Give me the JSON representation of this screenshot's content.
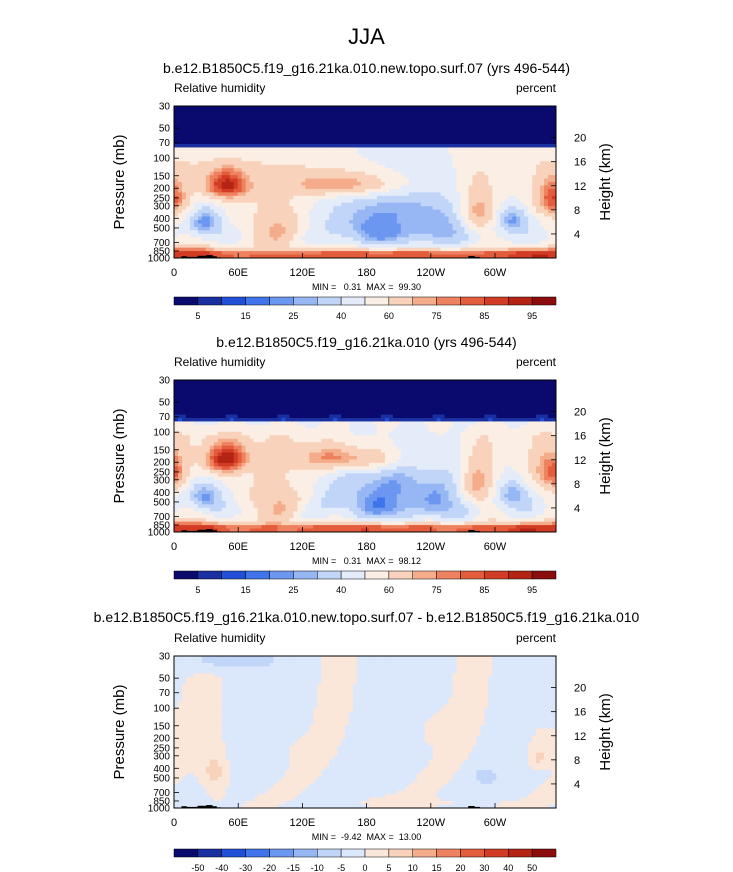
{
  "figure_title": "JJA",
  "panels": [
    {
      "title": "b.e12.B1850C5.f19_g16.21ka.010.new.topo.surf.07 (yrs 496-544)",
      "left_label": "Relative humidity",
      "right_label": "percent",
      "stats": "MIN =   0.31  MAX =  99.30",
      "kind": "abs"
    },
    {
      "title": "b.e12.B1850C5.f19_g16.21ka.010 (yrs 496-544)",
      "left_label": "Relative humidity",
      "right_label": "percent",
      "stats": "MIN =   0.31  MAX =  98.12",
      "kind": "abs"
    },
    {
      "title": "b.e12.B1850C5.f19_g16.21ka.010.new.topo.surf.07 - b.e12.B1850C5.f19_g16.21ka.010",
      "left_label": "Relative humidity",
      "right_label": "percent",
      "stats": "MIN =  -9.42  MAX =  13.00",
      "kind": "diff"
    }
  ],
  "chart_data": {
    "type": "heatmap",
    "title": "JJA",
    "xlabel": "",
    "ylabel_left": "Pressure (mb)",
    "ylabel_right": "Height (km)",
    "x_ticks": [
      "0",
      "60E",
      "120E",
      "180",
      "120W",
      "60W"
    ],
    "x_tick_values": [
      0,
      60,
      120,
      180,
      240,
      300
    ],
    "xlim": [
      0,
      357
    ],
    "y_ticks_pressure": [
      "30",
      "50",
      "70",
      "100",
      "150",
      "200",
      "250",
      "300",
      "400",
      "500",
      "700",
      "850",
      "1000"
    ],
    "y_tick_values": [
      30,
      50,
      70,
      100,
      150,
      200,
      250,
      300,
      400,
      500,
      700,
      850,
      1000
    ],
    "ylim_pressure": [
      1000,
      30
    ],
    "y_ticks_height": [
      "4",
      "8",
      "12",
      "16",
      "20"
    ],
    "y_height_values": [
      4,
      8,
      12,
      16,
      20
    ],
    "abs_levels": [
      "5",
      "15",
      "25",
      "40",
      "60",
      "75",
      "85",
      "95"
    ],
    "abs_level_values": [
      0,
      5,
      10,
      15,
      20,
      25,
      30,
      40,
      50,
      60,
      70,
      75,
      80,
      85,
      90,
      95,
      100
    ],
    "abs_colors": [
      "#0a0a6e",
      "#1a2fa0",
      "#2050d8",
      "#3f74ea",
      "#6c97f0",
      "#97b6f4",
      "#c1d5f8",
      "#e4ecfa",
      "#fbeee4",
      "#f9d2bc",
      "#f5ac8a",
      "#ee8260",
      "#e35c3c",
      "#d23c24",
      "#b32414",
      "#8a0c0c"
    ],
    "diff_levels": [
      "-50",
      "-40",
      "-30",
      "-20",
      "-15",
      "-10",
      "-5",
      "0",
      "5",
      "10",
      "15",
      "20",
      "30",
      "40",
      "50"
    ],
    "diff_colors": [
      "#0a0a6e",
      "#1a2fa0",
      "#2050d8",
      "#3f74ea",
      "#6c97f0",
      "#97b6f4",
      "#c1d5f8",
      "#dbe7fb",
      "#fbe6da",
      "#f9d2bc",
      "#f5ac8a",
      "#ee8260",
      "#e35c3c",
      "#d23c24",
      "#b32414",
      "#8a0c0c"
    ],
    "abs_features": [
      {
        "lon": 210,
        "p": 470,
        "sx": 32,
        "sp": 110,
        "v": 8
      },
      {
        "lon": 210,
        "p": 430,
        "sx": 58,
        "sp": 240,
        "v": 25
      },
      {
        "lon": 28,
        "p": 440,
        "sx": 12,
        "sp": 110,
        "v": 20
      },
      {
        "lon": 315,
        "p": 420,
        "sx": 12,
        "sp": 90,
        "v": 22
      },
      {
        "lon": 50,
        "p": 185,
        "sx": 15,
        "sp": 45,
        "v": 95
      },
      {
        "lon": 355,
        "p": 250,
        "sx": 12,
        "sp": 80,
        "v": 85
      },
      {
        "lon": 150,
        "p": 180,
        "sx": 45,
        "sp": 40,
        "v": 75
      },
      {
        "lon": 180,
        "p": 930,
        "sx": 140,
        "sp": 70,
        "v": 85
      },
      {
        "lon": 340,
        "p": 930,
        "sx": 25,
        "sp": 80,
        "v": 92
      },
      {
        "lon": 20,
        "p": 930,
        "sx": 18,
        "sp": 80,
        "v": 90
      },
      {
        "lon": 100,
        "p": 520,
        "sx": 18,
        "sp": 200,
        "v": 70
      },
      {
        "lon": 285,
        "p": 330,
        "sx": 12,
        "sp": 150,
        "v": 72
      }
    ],
    "diff_features": [
      {
        "lon": 38,
        "p": 420,
        "sx": 8,
        "sp": 120,
        "v": 7
      },
      {
        "lon": 40,
        "p": 650,
        "sx": 10,
        "sp": 200,
        "v": 4
      },
      {
        "lon": 345,
        "p": 230,
        "sx": 12,
        "sp": 80,
        "v": 4
      },
      {
        "lon": 340,
        "p": 320,
        "sx": 6,
        "sp": 60,
        "v": 6
      },
      {
        "lon": 200,
        "p": 850,
        "sx": 40,
        "sp": 60,
        "v": 2
      },
      {
        "lon": 290,
        "p": 480,
        "sx": 8,
        "sp": 60,
        "v": -6
      },
      {
        "lon": 245,
        "p": 170,
        "sx": 10,
        "sp": 40,
        "v": 3
      },
      {
        "lon": 120,
        "p": 290,
        "sx": 8,
        "sp": 50,
        "v": 3
      },
      {
        "lon": 45,
        "p": 33,
        "sx": 30,
        "sp": 6,
        "v": -7
      },
      {
        "lon": 260,
        "p": 920,
        "sx": 40,
        "sp": 60,
        "v": 2.5
      }
    ],
    "topography": [
      {
        "lon0": 7,
        "lon1": 12,
        "p": 960
      },
      {
        "lon0": 12,
        "lon1": 22,
        "p": 975
      },
      {
        "lon0": 22,
        "lon1": 30,
        "p": 950
      },
      {
        "lon0": 30,
        "lon1": 36,
        "p": 935
      },
      {
        "lon0": 36,
        "lon1": 40,
        "p": 960
      },
      {
        "lon0": 40,
        "lon1": 44,
        "p": 985
      },
      {
        "lon0": 275,
        "lon1": 281,
        "p": 955
      },
      {
        "lon0": 281,
        "lon1": 286,
        "p": 975
      },
      {
        "lon0": 286,
        "lon1": 300,
        "p": 990
      }
    ]
  }
}
